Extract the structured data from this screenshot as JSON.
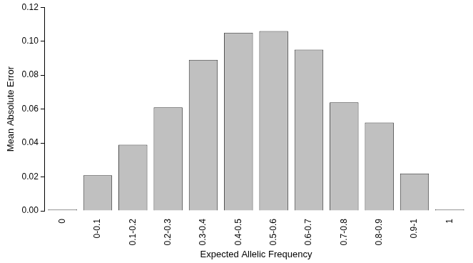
{
  "chart_data": {
    "type": "bar",
    "x_label": "Expected Allelic Frequency",
    "y_label": "Mean Absolute Error",
    "categories": [
      "0",
      "0-0.1",
      "0.1-0.2",
      "0.2-0.3",
      "0.3-0.4",
      "0.4-0.5",
      "0.5-0.6",
      "0.6-0.7",
      "0.7-0.8",
      "0.8-0.9",
      "0.9-1",
      "1"
    ],
    "values": [
      0.001,
      0.021,
      0.039,
      0.061,
      0.089,
      0.105,
      0.106,
      0.095,
      0.064,
      0.052,
      0.022,
      0.001
    ],
    "color": "#c0c0c0",
    "ylim": [
      0,
      0.12
    ],
    "yticks": [
      {
        "value": 0,
        "label": "0.00"
      },
      {
        "value": 0.02,
        "label": "0.02"
      },
      {
        "value": 0.04,
        "label": "0.04"
      },
      {
        "value": 0.06,
        "label": "0.06"
      },
      {
        "value": 0.08,
        "label": "0.08"
      },
      {
        "value": 0.1,
        "label": "0.10"
      },
      {
        "value": 0.12,
        "label": "0.12"
      }
    ],
    "grid": false
  }
}
